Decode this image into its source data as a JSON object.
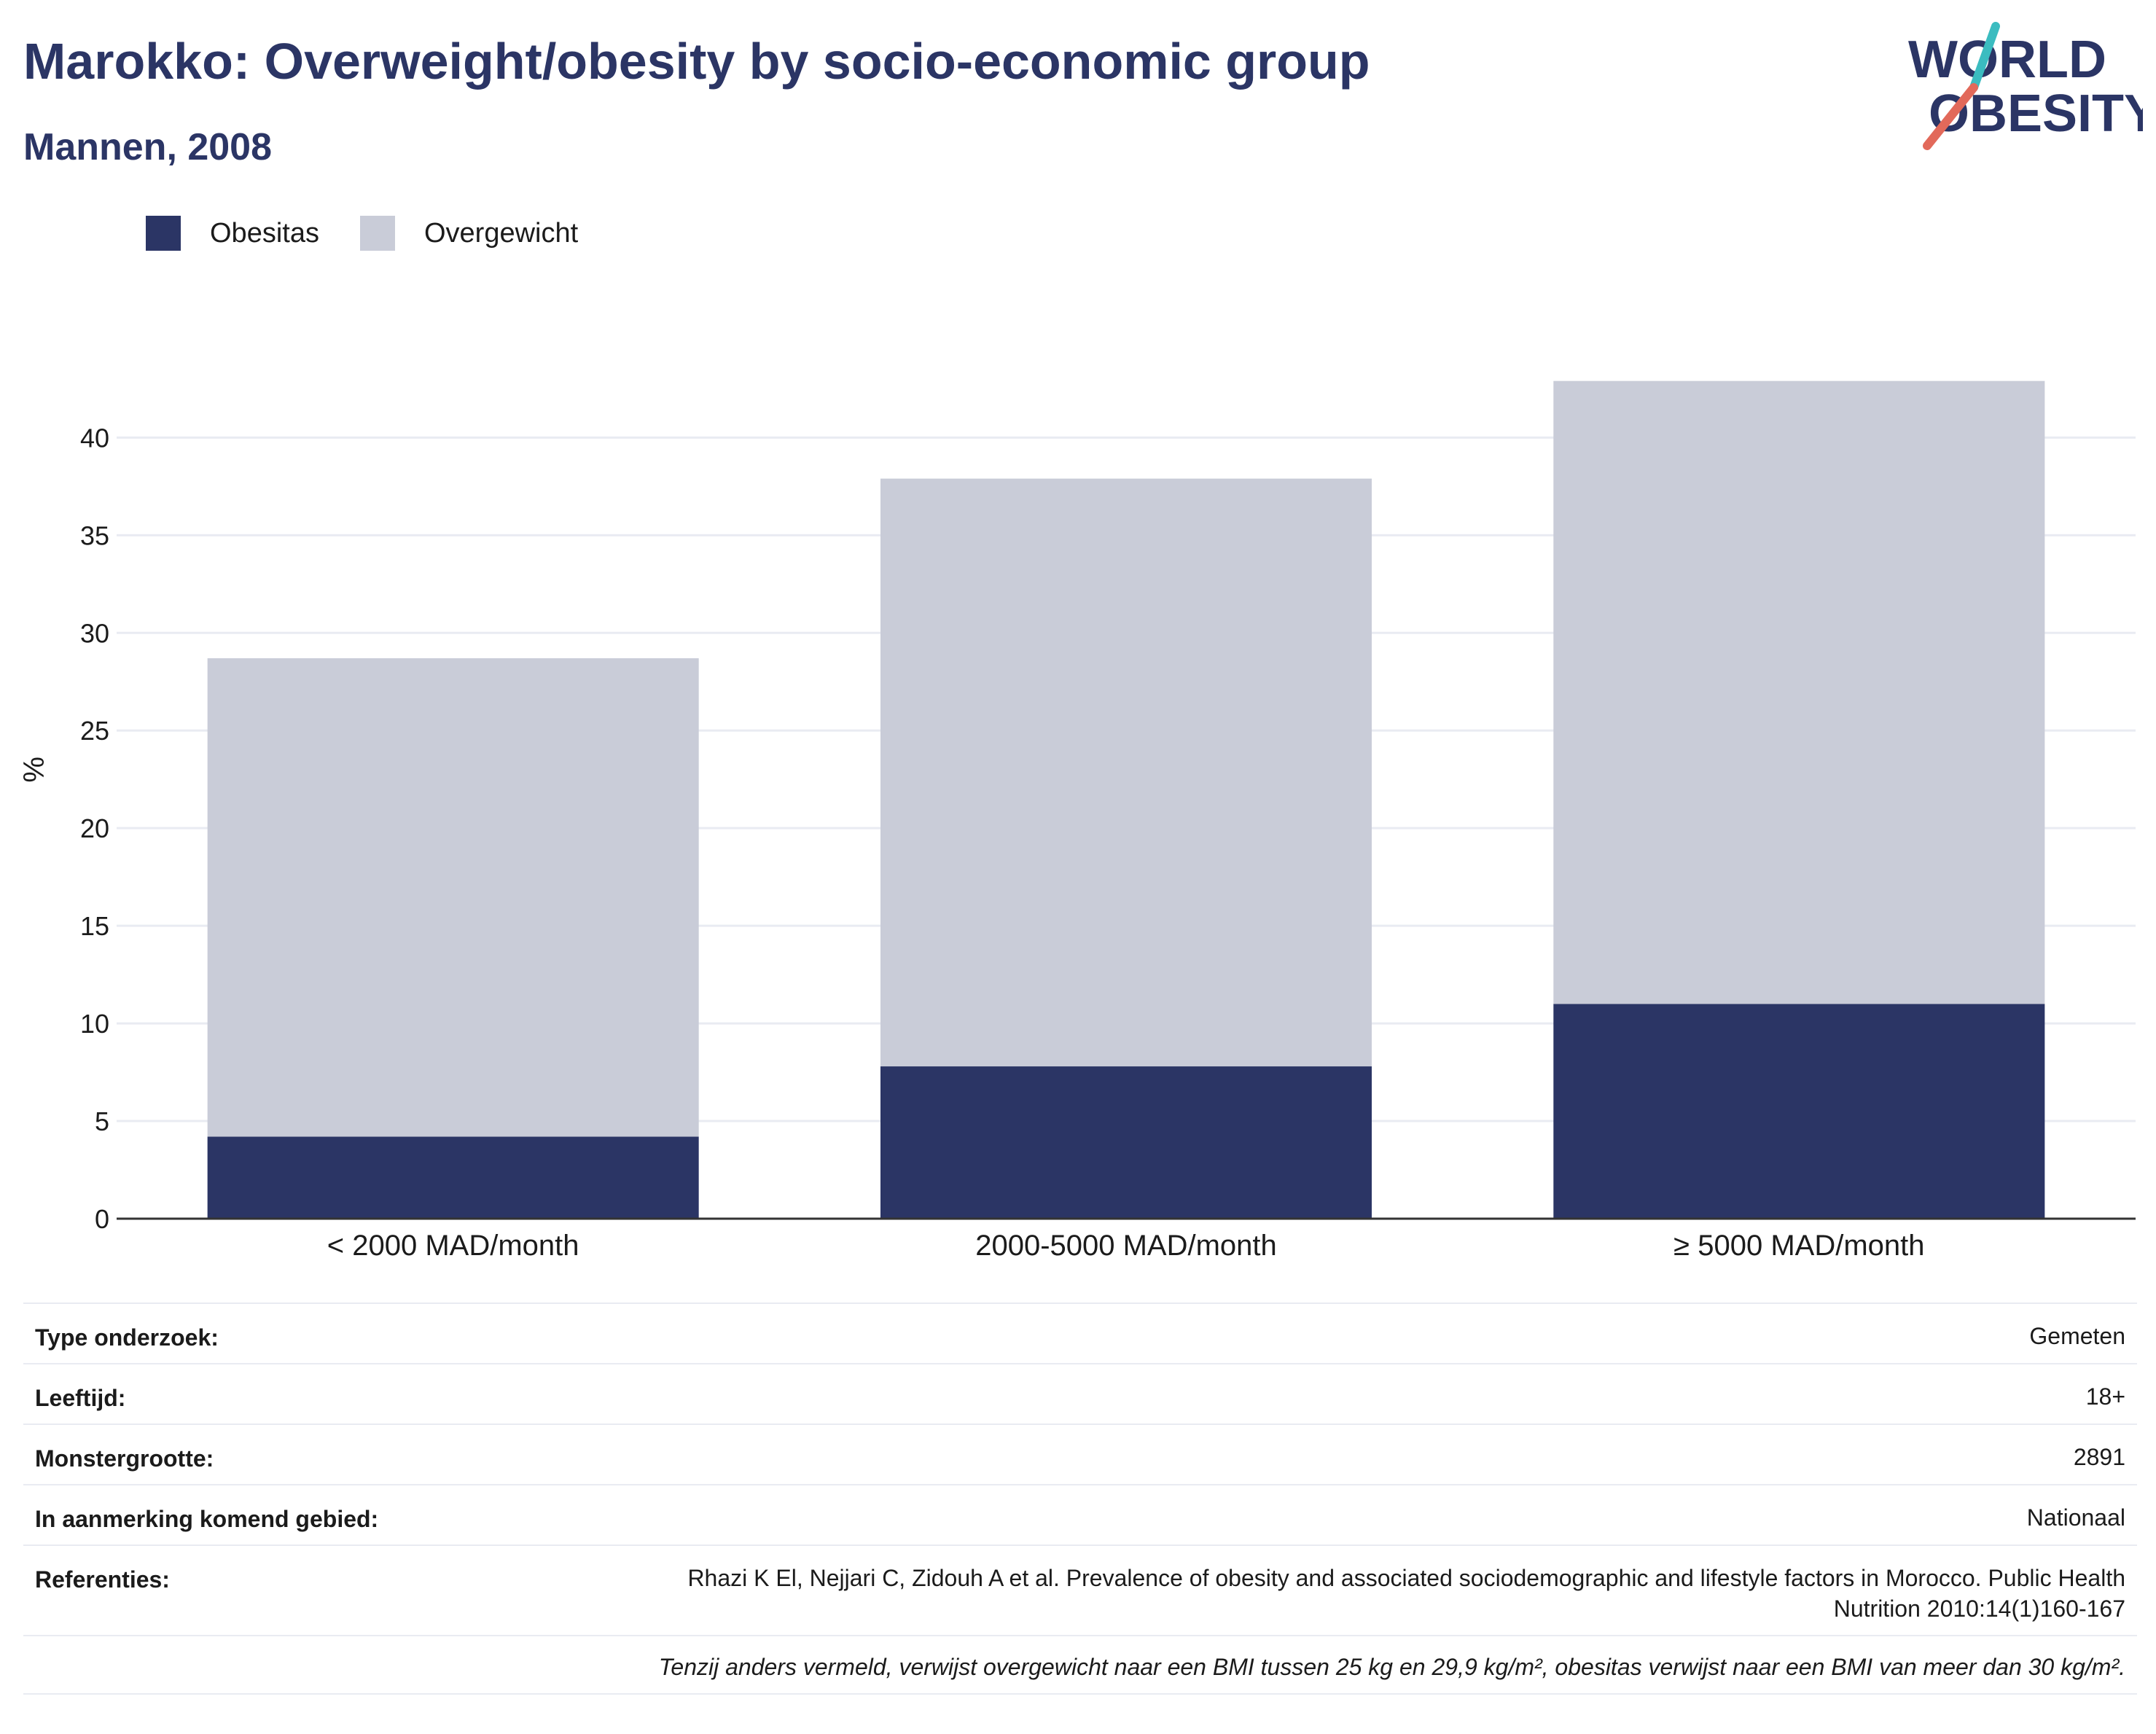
{
  "title": "Marokko: Overweight/obesity by socio-economic group",
  "subtitle": "Mannen, 2008",
  "logo": {
    "line1": "WORLD",
    "line2": "OBESITY"
  },
  "colors": {
    "obesitas": "#2b3565",
    "overgewicht": "#c9ccd8",
    "title": "#2b3565",
    "grid": "#e9ebf2",
    "accent_red": "#e2695a",
    "accent_teal": "#3bbcc0"
  },
  "legend": [
    {
      "label": "Obesitas",
      "color": "#2b3565"
    },
    {
      "label": "Overgewicht",
      "color": "#c9ccd8"
    }
  ],
  "chart_data": {
    "type": "bar",
    "stacked": true,
    "categories": [
      "< 2000 MAD/month",
      "2000-5000 MAD/month",
      "≥ 5000 MAD/month"
    ],
    "series": [
      {
        "name": "Obesitas",
        "values": [
          4.2,
          7.8,
          11.0
        ]
      },
      {
        "name": "Overgewicht",
        "values": [
          24.5,
          30.1,
          31.9
        ]
      }
    ],
    "ylabel": "%",
    "ylim": [
      0,
      43
    ],
    "yticks": [
      0,
      5,
      10,
      15,
      20,
      25,
      30,
      35,
      40
    ],
    "grid": true,
    "legend_position": "top-left"
  },
  "info": {
    "type_label": "Type onderzoek:",
    "type_value": "Gemeten",
    "age_label": "Leeftijd:",
    "age_value": "18+",
    "sample_label": "Monstergrootte:",
    "sample_value": "2891",
    "area_label": "In aanmerking komend gebied:",
    "area_value": "Nationaal",
    "ref_label": "Referenties:",
    "ref_value": "Rhazi K El, Nejjari C, Zidouh A et al. Prevalence of obesity and associated sociodemographic and lifestyle factors in Morocco. Public Health Nutrition 2010:14(1)160-167",
    "note": "Tenzij anders vermeld, verwijst overgewicht naar een BMI tussen 25 kg en 29,9 kg/m², obesitas verwijst naar een BMI van meer dan 30 kg/m²."
  }
}
